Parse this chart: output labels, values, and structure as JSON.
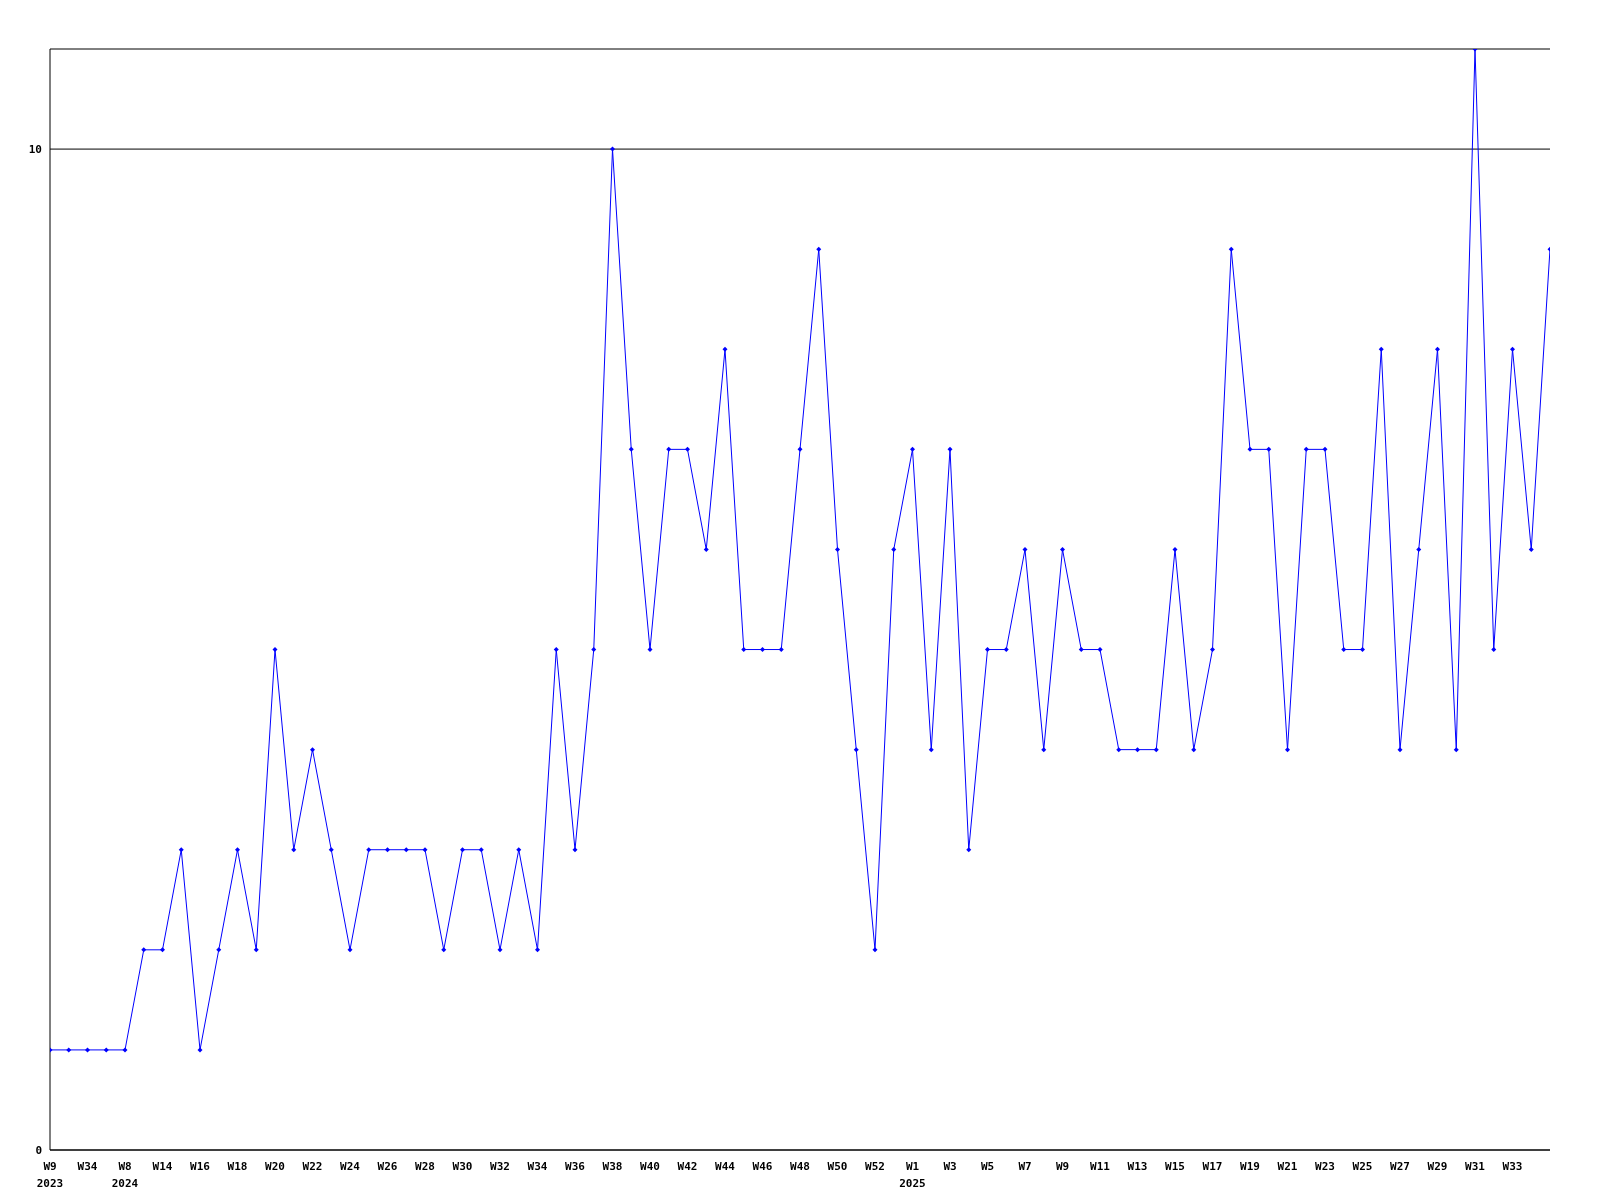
{
  "chart_data": {
    "type": "line",
    "categories": [
      "W9 2023",
      null,
      "W34",
      null,
      "W8 2024",
      null,
      "W14",
      null,
      "W16",
      null,
      "W18",
      null,
      "W20",
      null,
      "W22",
      null,
      "W24",
      null,
      "W26",
      null,
      "W28",
      null,
      "W30",
      null,
      "W32",
      null,
      "W34",
      null,
      "W36",
      null,
      "W38",
      null,
      "W40",
      null,
      "W42",
      null,
      "W44",
      null,
      "W46",
      null,
      "W48",
      null,
      "W50",
      null,
      "W52",
      null,
      "W1 2025",
      null,
      "W3",
      null,
      "W5",
      null,
      "W7",
      null,
      "W9",
      null,
      "W11",
      null,
      "W13",
      null,
      "W15",
      null,
      "W17",
      null,
      "W19",
      null,
      "W21",
      null,
      "W23",
      null,
      "W25",
      null,
      "W27",
      null,
      "W29",
      null,
      "W31",
      null,
      "W33",
      null,
      null
    ],
    "series": [
      {
        "color": "#0000ff",
        "values": [
          1,
          1,
          1,
          1,
          1,
          2,
          2,
          3,
          1,
          2,
          3,
          2,
          5,
          3,
          4,
          3,
          2,
          3,
          3,
          3,
          3,
          2,
          3,
          3,
          2,
          3,
          2,
          5,
          3,
          5,
          10,
          7,
          5,
          7,
          7,
          6,
          8,
          5,
          5,
          5,
          7,
          9,
          6,
          4,
          2,
          6,
          7,
          4,
          7,
          3,
          5,
          5,
          6,
          4,
          6,
          5,
          5,
          4,
          4,
          4,
          6,
          4,
          5,
          9,
          7,
          7,
          4,
          7,
          7,
          5,
          5,
          8,
          4,
          6,
          8,
          4,
          11,
          5,
          8,
          6,
          9
        ]
      }
    ],
    "ylim": [
      0,
      11
    ],
    "yticks": [
      0,
      10
    ],
    "grid": "y",
    "marker": "diamond",
    "legend": false
  }
}
